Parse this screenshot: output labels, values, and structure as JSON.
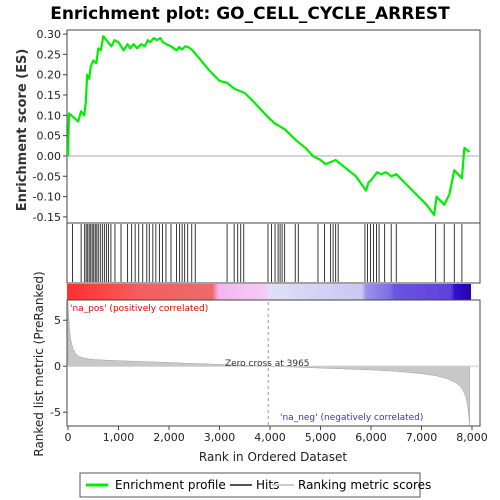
{
  "chart_data": {
    "type": "line",
    "title": "Enrichment plot: GO_CELL_CYCLE_ARREST",
    "es_panel": {
      "ylabel": "Enrichment score (ES)",
      "ylim": [
        -0.165,
        0.31
      ],
      "yticks": [
        -0.15,
        -0.1,
        -0.05,
        0.0,
        0.05,
        0.1,
        0.15,
        0.2,
        0.25,
        0.3
      ],
      "ytick_labels": [
        "-0.15",
        "-0.10",
        "-0.05",
        "0.00",
        "0.05",
        "0.10",
        "0.15",
        "0.20",
        "0.25",
        "0.30"
      ],
      "series": [
        {
          "name": "Enrichment profile",
          "color": "#00ee00",
          "x": [
            0,
            20,
            200,
            260,
            320,
            350,
            380,
            420,
            450,
            500,
            560,
            600,
            650,
            700,
            760,
            860,
            920,
            1000,
            1100,
            1180,
            1230,
            1300,
            1370,
            1450,
            1520,
            1580,
            1630,
            1700,
            1760,
            1830,
            1880,
            1950,
            2040,
            2150,
            2200,
            2260,
            2320,
            2380,
            2450,
            2600,
            2800,
            3000,
            3150,
            3300,
            3500,
            3700,
            3965,
            4100,
            4300,
            4500,
            4700,
            4850,
            5000,
            5100,
            5200,
            5300,
            5500,
            5700,
            5900,
            5950,
            6000,
            6060,
            6120,
            6200,
            6300,
            6400,
            6500,
            6700,
            6900,
            7100,
            7250,
            7300,
            7450,
            7550,
            7650,
            7800,
            7850,
            7950
          ],
          "y": [
            0.0,
            0.105,
            0.085,
            0.11,
            0.1,
            0.13,
            0.2,
            0.19,
            0.22,
            0.235,
            0.228,
            0.265,
            0.26,
            0.295,
            0.285,
            0.27,
            0.285,
            0.28,
            0.26,
            0.275,
            0.265,
            0.275,
            0.265,
            0.275,
            0.27,
            0.285,
            0.28,
            0.29,
            0.285,
            0.29,
            0.28,
            0.275,
            0.27,
            0.26,
            0.268,
            0.262,
            0.27,
            0.268,
            0.262,
            0.24,
            0.21,
            0.185,
            0.18,
            0.165,
            0.155,
            0.13,
            0.095,
            0.08,
            0.065,
            0.04,
            0.02,
            0.0,
            -0.01,
            -0.02,
            -0.015,
            -0.01,
            -0.03,
            -0.05,
            -0.085,
            -0.065,
            -0.06,
            -0.05,
            -0.04,
            -0.045,
            -0.04,
            -0.05,
            -0.045,
            -0.07,
            -0.095,
            -0.12,
            -0.145,
            -0.1,
            -0.12,
            -0.095,
            -0.035,
            -0.055,
            0.02,
            0.01
          ]
        }
      ]
    },
    "hits_panel": {
      "positions": [
        90,
        260,
        330,
        360,
        390,
        420,
        450,
        480,
        510,
        540,
        570,
        600,
        640,
        680,
        720,
        760,
        800,
        850,
        930,
        1050,
        1180,
        1260,
        1330,
        1400,
        1480,
        1560,
        1610,
        1680,
        1740,
        1810,
        1870,
        1940,
        2040,
        2150,
        2210,
        2260,
        2310,
        2370,
        2450,
        2520,
        3150,
        3290,
        3360,
        3420,
        3480,
        3960,
        4030,
        4100,
        4160,
        4200,
        4240,
        4290,
        4500,
        4560,
        4950,
        5080,
        5200,
        5250,
        5300,
        5350,
        5880,
        5930,
        5990,
        6050,
        6110,
        6160,
        6270,
        6400,
        6500,
        7280,
        7450,
        7650,
        7800
      ]
    },
    "ranked_panel": {
      "ylabel": "Ranked list metric (PreRanked)",
      "xlabel": "Rank in Ordered Dataset",
      "ylim": [
        -6.5,
        7.2
      ],
      "yticks": [
        -5,
        0,
        5
      ],
      "ytick_labels": [
        "-5",
        "0",
        "5"
      ],
      "xlim": [
        0,
        8000
      ],
      "xticks": [
        0,
        1000,
        2000,
        3000,
        4000,
        5000,
        6000,
        7000,
        8000
      ],
      "xtick_labels": [
        "0",
        "1,000",
        "2,000",
        "3,000",
        "4,000",
        "5,000",
        "6,000",
        "7,000",
        "8,000"
      ],
      "metric_x": [
        0,
        10,
        30,
        60,
        100,
        150,
        200,
        300,
        400,
        600,
        1000,
        1500,
        2000,
        2500,
        3000,
        3500,
        3965,
        4500,
        5000,
        5500,
        6000,
        6500,
        7000,
        7300,
        7500,
        7650,
        7750,
        7820,
        7870,
        7910,
        7940,
        7955
      ],
      "metric_y": [
        7.0,
        5.8,
        4.0,
        2.7,
        1.9,
        1.4,
        1.1,
        0.9,
        0.8,
        0.7,
        0.6,
        0.5,
        0.4,
        0.3,
        0.2,
        0.1,
        0.0,
        -0.1,
        -0.2,
        -0.3,
        -0.4,
        -0.55,
        -0.8,
        -1.05,
        -1.35,
        -1.7,
        -2.1,
        -2.6,
        -3.2,
        -4.2,
        -5.6,
        -6.4
      ],
      "zero_cross_x": 3965,
      "zero_cross_label": "Zero cross at 3965",
      "pos_label": "'na_pos' (positively correlated)",
      "neg_label": "'na_neg' (negatively correlated)",
      "pos_color": "#ee0000",
      "neg_color": "#3333cc"
    },
    "legend": {
      "placement": "bottom",
      "entries": [
        {
          "label": "Enrichment profile",
          "color": "#00ee00"
        },
        {
          "label": "Hits",
          "color": "#555555"
        },
        {
          "label": "Ranking metric scores",
          "color": "#cccccc"
        }
      ]
    }
  }
}
